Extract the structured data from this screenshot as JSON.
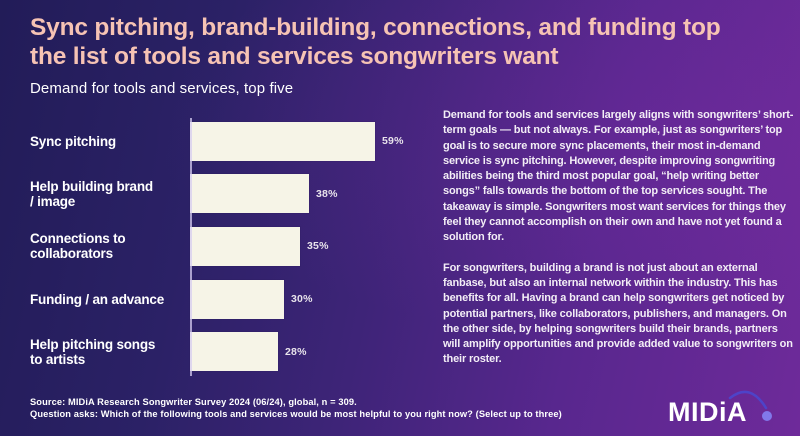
{
  "title": "Sync pitching, brand-building, connections, and funding top\nthe list of tools and services songwriters want",
  "subtitle": "Demand for tools and services, top five",
  "chart_data": {
    "type": "bar",
    "orientation": "horizontal",
    "categories": [
      "Sync pitching",
      "Help building brand\n/ image",
      "Connections to\ncollaborators",
      "Funding / an advance",
      "Help pitching songs\nto artists"
    ],
    "values": [
      59,
      38,
      35,
      30,
      28
    ],
    "value_labels": [
      "59%",
      "38%",
      "35%",
      "30%",
      "28%"
    ],
    "unit": "%",
    "xlim": [
      0,
      62
    ],
    "grid": false,
    "legend": "none",
    "bar_color": "#f6f4e7",
    "value_label_color": "#e9e4ec",
    "axis_line_color": "#d6ccf0"
  },
  "commentary": {
    "para1": "Demand for tools and services largely aligns with songwriters’ short-term goals — but not always. For example, just as songwriters’ top goal is to secure more sync placements, their most in-demand service is sync pitching. However, despite improving songwriting abilities being the third most popular goal, “help writing better songs” falls towards the bottom of the top services sought. The takeaway is simple. Songwriters most want services for things they feel they cannot accomplish on their own and have not yet found a solution for.",
    "para2": "For songwriters, building a brand is not just about an external fanbase, but also an internal network within the industry. This has benefits for all. Having a brand can help songwriters get noticed by potential partners, like collaborators, publishers, and managers. On the other side, by helping songwriters build their brands, partners will amplify opportunities and provide added value to songwriters on their roster."
  },
  "footer": {
    "source_line": "Source: MIDiA Research Songwriter Survey 2024 (06/24), global, n = 309.",
    "question_line": "Question asks: Which of the following tools and services would be most helpful to you right now? (Select up to three)"
  },
  "logo": {
    "text": "MIDiA"
  },
  "colors": {
    "background_left": "#221c58",
    "background_right": "#6e2a9a",
    "title": "#f6c3b4",
    "body_text": "#f3eef6",
    "bar_fill": "#f6f4e7",
    "logo_arc": "#4e43c8",
    "logo_dot": "#8178ea"
  }
}
